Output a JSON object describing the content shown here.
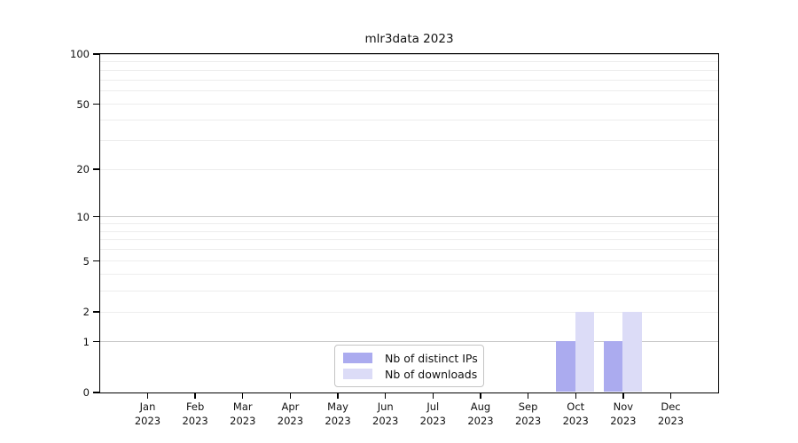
{
  "chart_data": {
    "type": "bar",
    "title": "mlr3data 2023",
    "categories": [
      "Jan",
      "Feb",
      "Mar",
      "Apr",
      "May",
      "Jun",
      "Jul",
      "Aug",
      "Sep",
      "Oct",
      "Nov",
      "Dec"
    ],
    "category_year": "2023",
    "series": [
      {
        "name": "Nb of distinct IPs",
        "color": "#ababef",
        "values": [
          0,
          0,
          0,
          0,
          0,
          0,
          0,
          0,
          0,
          1,
          1,
          0
        ]
      },
      {
        "name": "Nb of downloads",
        "color": "#dcdcf7",
        "values": [
          0,
          0,
          0,
          0,
          0,
          0,
          0,
          0,
          0,
          2,
          2,
          0
        ]
      }
    ],
    "yscale": "log1p",
    "ylim": [
      0,
      100
    ],
    "yticks": [
      0,
      1,
      2,
      5,
      10,
      20,
      50,
      100
    ],
    "major_gridlines": [
      1,
      10,
      100
    ],
    "minor_gridlines": [
      2,
      3,
      4,
      5,
      6,
      7,
      8,
      9,
      20,
      30,
      40,
      50,
      60,
      70,
      80,
      90
    ],
    "grid": "horizontal",
    "legend_position": "lower center"
  },
  "colors": {
    "background": "#ffffff",
    "spine": "#000000",
    "major_grid": "#c8c8c8",
    "minor_grid": "#ededed",
    "text": "#111111",
    "legend_border": "#c4c4c4"
  }
}
